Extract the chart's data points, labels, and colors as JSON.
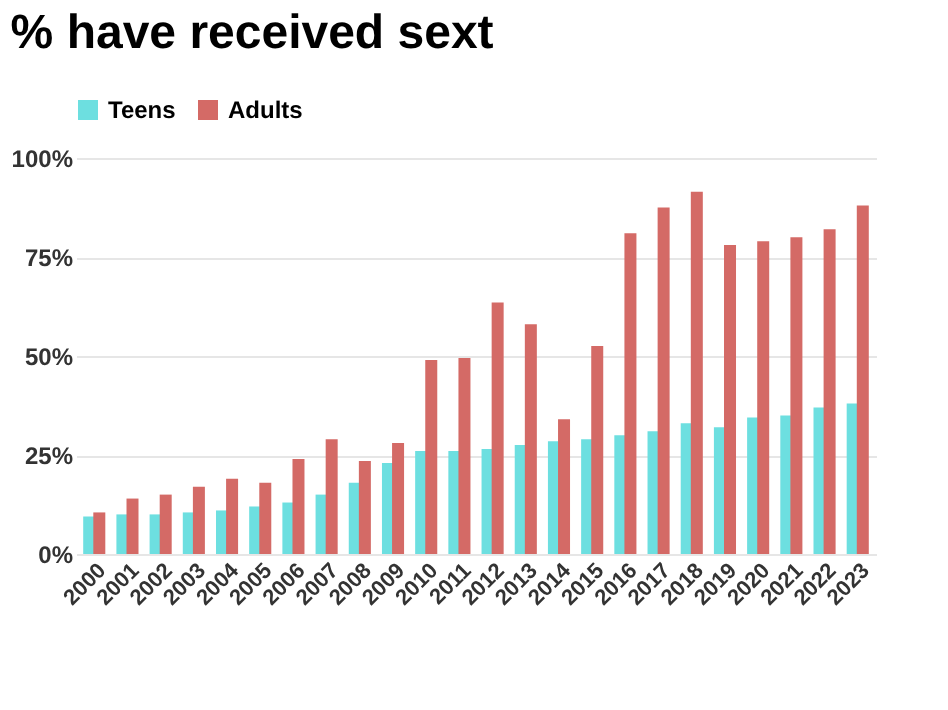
{
  "chart_data": {
    "type": "bar",
    "title": "% have received sext",
    "categories": [
      "2000",
      "2001",
      "2002",
      "2003",
      "2004",
      "2005",
      "2006",
      "2007",
      "2008",
      "2009",
      "2010",
      "2011",
      "2012",
      "2013",
      "2014",
      "2015",
      "2016",
      "2017",
      "2018",
      "2019",
      "2020",
      "2021",
      "2022",
      "2023"
    ],
    "series": [
      {
        "name": "Teens",
        "color": "#6ddfe0",
        "values": [
          9.5,
          10,
          10,
          10.5,
          11,
          12,
          13,
          15,
          18,
          23,
          26,
          26,
          26.5,
          27.5,
          28.5,
          29,
          30,
          31,
          33,
          32,
          34.5,
          35,
          37,
          38
        ]
      },
      {
        "name": "Adults",
        "color": "#d46a66",
        "values": [
          10.5,
          14,
          15,
          17,
          19,
          18,
          24,
          29,
          23.5,
          28,
          49,
          49.5,
          63.5,
          58,
          34,
          52.5,
          81,
          87.5,
          91.5,
          78,
          79,
          80,
          82,
          88
        ]
      }
    ],
    "ylim": [
      0,
      100
    ],
    "yticks": [
      {
        "value": 0,
        "label": "0%"
      },
      {
        "value": 25,
        "label": "25%"
      },
      {
        "value": 50,
        "label": "50%"
      },
      {
        "value": 75,
        "label": "75%"
      },
      {
        "value": 100,
        "label": "100%"
      }
    ],
    "grid": "y",
    "legend": "top"
  }
}
